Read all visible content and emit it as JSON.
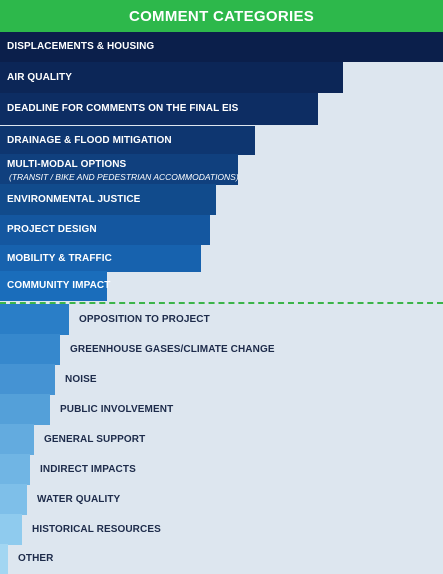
{
  "header": {
    "title": "COMMENT CATEGORIES"
  },
  "chart_data": {
    "type": "bar",
    "orientation": "horizontal",
    "title": "COMMENT CATEGORIES",
    "categories": [
      "DISPLACEMENTS & HOUSING",
      "AIR QUALITY",
      "DEADLINE FOR COMMENTS ON THE FINAL EIS",
      "DRAINAGE & FLOOD MITIGATION",
      "MULTI-MODAL OPTIONS",
      "ENVIRONMENTAL JUSTICE",
      "PROJECT DESIGN",
      "MOBILITY & TRAFFIC",
      "COMMUNITY IMPACT",
      "OPPOSITION TO PROJECT",
      "GREENHOUSE GASES/CLIMATE CHANGE",
      "NOISE",
      "PUBLIC INVOLVEMENT",
      "GENERAL SUPPORT",
      "INDIRECT IMPACTS",
      "WATER QUALITY",
      "HISTORICAL RESOURCES",
      "OTHER"
    ],
    "subtitles": {
      "MULTI-MODAL OPTIONS": "(TRANSIT / BIKE AND PEDESTRIAN ACCOMMODATIONS)"
    },
    "values": [
      100,
      77.4,
      71.8,
      57.6,
      53.7,
      48.8,
      47.4,
      45.4,
      24.2,
      15.6,
      13.5,
      12.4,
      11.3,
      7.7,
      6.8,
      6.1,
      5.0,
      1.8
    ],
    "xlim": [
      0,
      100
    ],
    "colors": [
      "#0b1f4b",
      "#0c2657",
      "#0d2d63",
      "#0e3670",
      "#10407e",
      "#114b8c",
      "#1457a0",
      "#1762ae",
      "#1a6dbb",
      "#2a7ec7",
      "#3688cd",
      "#4593d3",
      "#54a0d9",
      "#63abdf",
      "#70b5e4",
      "#7ebfe9",
      "#8fcbee",
      "#a2d6f2"
    ],
    "threshold_after_index": 8,
    "grid": false,
    "legend": "none"
  }
}
